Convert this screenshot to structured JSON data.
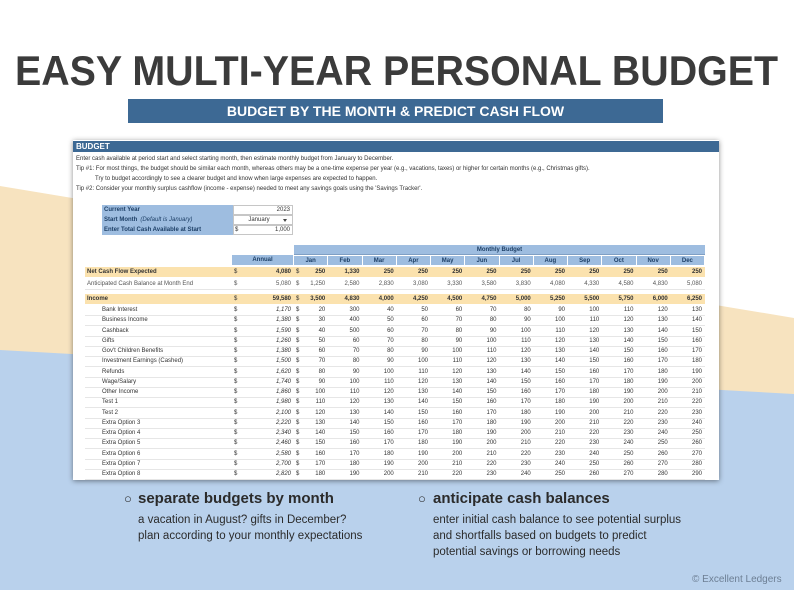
{
  "header": {
    "title": "EASY MULTI-YEAR PERSONAL BUDGET",
    "subtitle": "BUDGET BY THE MONTH & PREDICT CASH FLOW"
  },
  "sheet": {
    "title": "BUDGET",
    "instructions": [
      "Enter cash available at period start and select starting month, then estimate monthly budget from January to December.",
      "Tip #1: For most things, the budget should be similar each month, whereas others may be a one-time expense per year (e.g., vacations, taxes) or higher for certain months (e.g., Christmas gifts).",
      "Try to budget accordingly to see a clearer budget and know when large expenses are expected to happen.",
      "Tip #2: Consider your monthly surplus cashflow (income - expense) needed to meet any savings goals using the 'Savings Tracker'."
    ],
    "currency": "$",
    "settings": [
      {
        "label": "Current Year",
        "value": "2023"
      },
      {
        "label": "Start Month",
        "note": "(Default is January)",
        "value": "January"
      },
      {
        "label": "Enter Total Cash Available at Start",
        "value": "1,000"
      }
    ],
    "group_header": "Monthly Budget",
    "columns": [
      "Annual",
      "Jan",
      "Feb",
      "Mar",
      "Apr",
      "May",
      "Jun",
      "Jul",
      "Aug",
      "Sep",
      "Oct",
      "Nov",
      "Dec"
    ],
    "rows": [
      {
        "label": "Net Cash Flow Expected",
        "annual": "4,080",
        "months": [
          "250",
          "1,330",
          "250",
          "250",
          "250",
          "250",
          "250",
          "250",
          "250",
          "250",
          "250",
          "250"
        ]
      },
      {
        "label": "Anticipated Cash Balance at Month End",
        "annual": "5,080",
        "months": [
          "1,250",
          "2,580",
          "2,830",
          "3,080",
          "3,330",
          "3,580",
          "3,830",
          "4,080",
          "4,330",
          "4,580",
          "4,830",
          "5,080"
        ]
      },
      {
        "label": "Income",
        "annual": "59,580",
        "months": [
          "3,500",
          "4,830",
          "4,000",
          "4,250",
          "4,500",
          "4,750",
          "5,000",
          "5,250",
          "5,500",
          "5,750",
          "6,000",
          "6,250"
        ]
      },
      {
        "label": "Bank Interest",
        "annual": "1,170",
        "months": [
          "20",
          "300",
          "40",
          "50",
          "60",
          "70",
          "80",
          "90",
          "100",
          "110",
          "120",
          "130"
        ]
      },
      {
        "label": "Business Income",
        "annual": "1,380",
        "months": [
          "30",
          "400",
          "50",
          "60",
          "70",
          "80",
          "90",
          "100",
          "110",
          "120",
          "130",
          "140"
        ]
      },
      {
        "label": "Cashback",
        "annual": "1,590",
        "months": [
          "40",
          "500",
          "60",
          "70",
          "80",
          "90",
          "100",
          "110",
          "120",
          "130",
          "140",
          "150"
        ]
      },
      {
        "label": "Gifts",
        "annual": "1,260",
        "months": [
          "50",
          "60",
          "70",
          "80",
          "90",
          "100",
          "110",
          "120",
          "130",
          "140",
          "150",
          "160"
        ]
      },
      {
        "label": "Gov't Children Benefits",
        "annual": "1,380",
        "months": [
          "60",
          "70",
          "80",
          "90",
          "100",
          "110",
          "120",
          "130",
          "140",
          "150",
          "160",
          "170"
        ]
      },
      {
        "label": "Investment Earnings (Cashed)",
        "annual": "1,500",
        "months": [
          "70",
          "80",
          "90",
          "100",
          "110",
          "120",
          "130",
          "140",
          "150",
          "160",
          "170",
          "180"
        ]
      },
      {
        "label": "Refunds",
        "annual": "1,620",
        "months": [
          "80",
          "90",
          "100",
          "110",
          "120",
          "130",
          "140",
          "150",
          "160",
          "170",
          "180",
          "190"
        ]
      },
      {
        "label": "Wage/Salary",
        "annual": "1,740",
        "months": [
          "90",
          "100",
          "110",
          "120",
          "130",
          "140",
          "150",
          "160",
          "170",
          "180",
          "190",
          "200"
        ]
      },
      {
        "label": "Other Income",
        "annual": "1,860",
        "months": [
          "100",
          "110",
          "120",
          "130",
          "140",
          "150",
          "160",
          "170",
          "180",
          "190",
          "200",
          "210"
        ]
      },
      {
        "label": "Test 1",
        "annual": "1,980",
        "months": [
          "110",
          "120",
          "130",
          "140",
          "150",
          "160",
          "170",
          "180",
          "190",
          "200",
          "210",
          "220"
        ]
      },
      {
        "label": "Test 2",
        "annual": "2,100",
        "months": [
          "120",
          "130",
          "140",
          "150",
          "160",
          "170",
          "180",
          "190",
          "200",
          "210",
          "220",
          "230"
        ]
      },
      {
        "label": "Extra Option 3",
        "annual": "2,220",
        "months": [
          "130",
          "140",
          "150",
          "160",
          "170",
          "180",
          "190",
          "200",
          "210",
          "220",
          "230",
          "240"
        ]
      },
      {
        "label": "Extra Option 4",
        "annual": "2,340",
        "months": [
          "140",
          "150",
          "160",
          "170",
          "180",
          "190",
          "200",
          "210",
          "220",
          "230",
          "240",
          "250"
        ]
      },
      {
        "label": "Extra Option 5",
        "annual": "2,460",
        "months": [
          "150",
          "160",
          "170",
          "180",
          "190",
          "200",
          "210",
          "220",
          "230",
          "240",
          "250",
          "260"
        ]
      },
      {
        "label": "Extra Option 6",
        "annual": "2,580",
        "months": [
          "160",
          "170",
          "180",
          "190",
          "200",
          "210",
          "220",
          "230",
          "240",
          "250",
          "260",
          "270"
        ]
      },
      {
        "label": "Extra Option 7",
        "annual": "2,700",
        "months": [
          "170",
          "180",
          "190",
          "200",
          "210",
          "220",
          "230",
          "240",
          "250",
          "260",
          "270",
          "280"
        ]
      },
      {
        "label": "Extra Option 8",
        "annual": "2,820",
        "months": [
          "180",
          "190",
          "200",
          "210",
          "220",
          "230",
          "240",
          "250",
          "260",
          "270",
          "280",
          "290"
        ]
      }
    ]
  },
  "features": [
    {
      "heading": "separate budgets by month",
      "lines": [
        "a vacation in August? gifts in December?",
        "plan according to your monthly expectations"
      ]
    },
    {
      "heading": "anticipate cash balances",
      "lines": [
        "enter initial cash balance to see potential surplus",
        "and shortfalls based on budgets to predict",
        "potential savings or borrowing needs"
      ]
    }
  ],
  "footer": {
    "copyright": "© Excellent Ledgers"
  }
}
